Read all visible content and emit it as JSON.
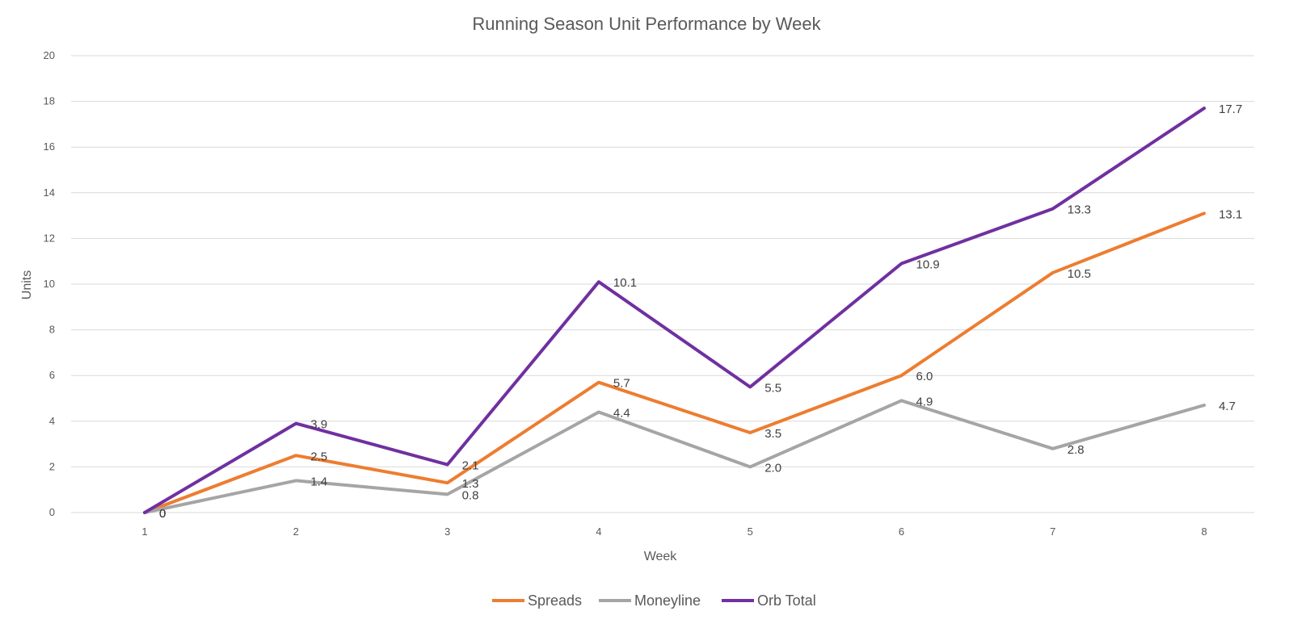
{
  "chart_data": {
    "type": "line",
    "title": "Running Season Unit Performance by Week",
    "xlabel": "Week",
    "ylabel": "Units",
    "categories": [
      "1",
      "2",
      "3",
      "4",
      "5",
      "6",
      "7",
      "8"
    ],
    "ylim": [
      0,
      20
    ],
    "y_ticks": [
      "0",
      "2",
      "4",
      "6",
      "8",
      "10",
      "12",
      "14",
      "16",
      "18",
      "20"
    ],
    "grid": true,
    "legend_position": "bottom",
    "series": [
      {
        "name": "Spreads",
        "color": "#ed7d31",
        "values": [
          0,
          2.5,
          1.3,
          5.7,
          3.5,
          6.0,
          10.5,
          13.1
        ],
        "labels": [
          "0",
          "2.5",
          "1.3",
          "5.7",
          "3.5",
          "6.0",
          "10.5",
          "13.1"
        ]
      },
      {
        "name": "Moneyline",
        "color": "#a5a5a5",
        "values": [
          0,
          1.4,
          0.8,
          4.4,
          2.0,
          4.9,
          2.8,
          4.7
        ],
        "labels": [
          "0",
          "1.4",
          "0.8",
          "4.4",
          "2.0",
          "4.9",
          "2.8",
          "4.7"
        ]
      },
      {
        "name": "Orb Total",
        "color": "#7030a0",
        "values": [
          0,
          3.9,
          2.1,
          10.1,
          5.5,
          10.9,
          13.3,
          17.7
        ],
        "labels": [
          "0",
          "3.9",
          "2.1",
          "10.1",
          "5.5",
          "10.9",
          "13.3",
          "17.7"
        ]
      }
    ]
  }
}
